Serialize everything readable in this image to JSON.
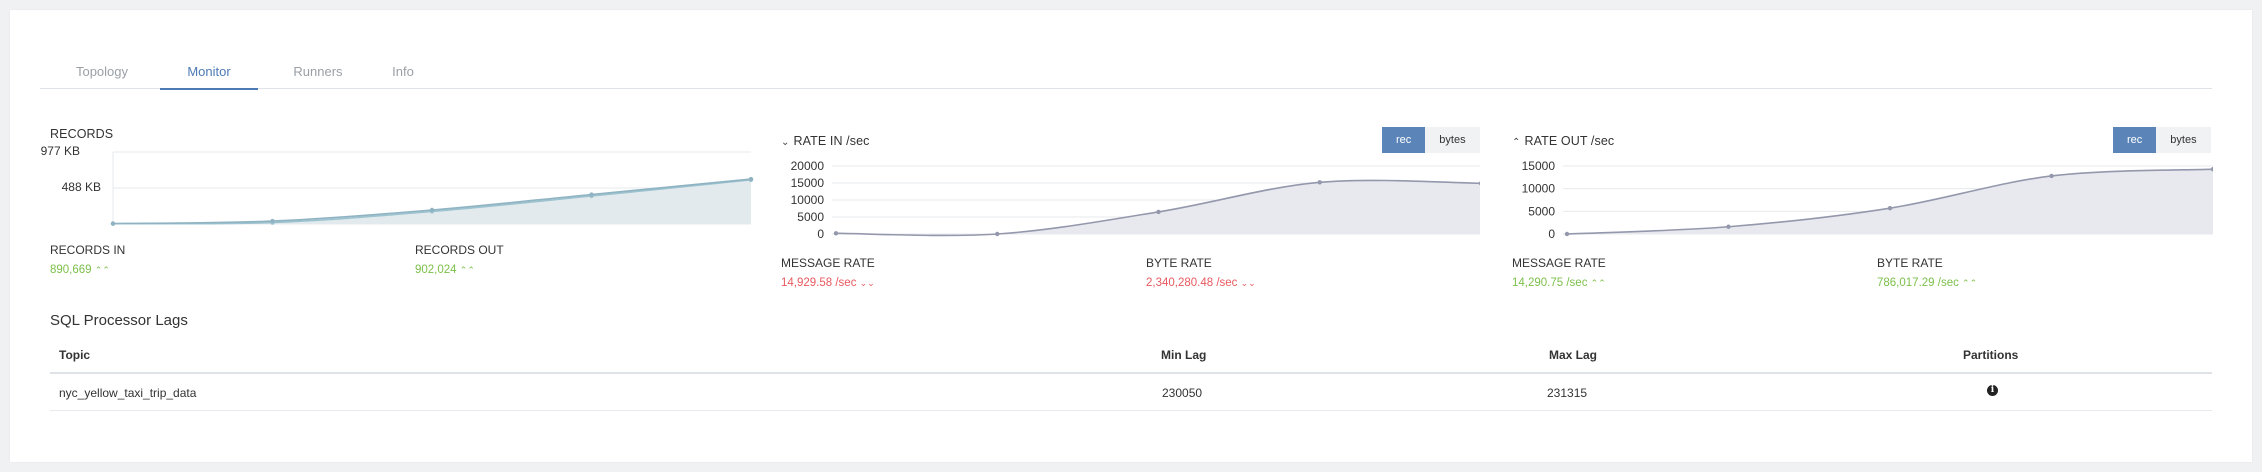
{
  "tabs": [
    {
      "label": "Topology",
      "active": false
    },
    {
      "label": "Monitor",
      "active": true
    },
    {
      "label": "Runners",
      "active": false
    },
    {
      "label": "Info",
      "active": false
    }
  ],
  "records": {
    "title": "RECORDS",
    "y_ticks": [
      "977  KB",
      "488  KB"
    ],
    "in_label": "RECORDS IN",
    "in_value": "890,669",
    "out_label": "RECORDS OUT",
    "out_value": "902,024"
  },
  "rate_in": {
    "title": "RATE IN /sec",
    "btn_rec": "rec",
    "btn_bytes": "bytes",
    "y_ticks": [
      "20000",
      "15000",
      "10000",
      "5000",
      "0"
    ],
    "msg_label": "MESSAGE RATE",
    "msg_value": "14,929.58 /sec",
    "byte_label": "BYTE RATE",
    "byte_value": "2,340,280.48 /sec"
  },
  "rate_out": {
    "title": "RATE OUT /sec",
    "btn_rec": "rec",
    "btn_bytes": "bytes",
    "y_ticks": [
      "15000",
      "10000",
      "5000",
      "0"
    ],
    "msg_label": "MESSAGE RATE",
    "msg_value": "14,290.75 /sec",
    "byte_label": "BYTE RATE",
    "byte_value": "786,017.29 /sec"
  },
  "chart_data": [
    {
      "type": "area",
      "title": "RECORDS",
      "ylabel": "",
      "ylim": [
        0,
        977
      ],
      "y_ticks": [
        "977  KB",
        "488  KB"
      ],
      "series": [
        {
          "name": "RECORDS IN",
          "values": [
            5,
            20,
            170,
            380,
            600
          ]
        },
        {
          "name": "RECORDS OUT",
          "values": [
            5,
            40,
            190,
            400,
            610
          ]
        }
      ]
    },
    {
      "type": "area",
      "title": "RATE IN /sec",
      "ylim": [
        0,
        20000
      ],
      "y_ticks": [
        "20000",
        "15000",
        "10000",
        "5000",
        "0"
      ],
      "series": [
        {
          "values": [
            200,
            0,
            6500,
            15200,
            14900
          ]
        }
      ]
    },
    {
      "type": "area",
      "title": "RATE OUT /sec",
      "ylim": [
        0,
        15000
      ],
      "y_ticks": [
        "15000",
        "10000",
        "5000",
        "0"
      ],
      "series": [
        {
          "values": [
            0,
            1600,
            5700,
            12800,
            14300
          ]
        }
      ]
    }
  ],
  "lags": {
    "title": "SQL Processor Lags",
    "headers": {
      "topic": "Topic",
      "min": "Min Lag",
      "max": "Max Lag",
      "partitions": "Partitions"
    },
    "rows": [
      {
        "topic": "nyc_yellow_taxi_trip_data",
        "min": "230050",
        "max": "231315"
      }
    ]
  },
  "colors": {
    "accent": "#4d7ab4",
    "green": "#7cc04b",
    "red": "#e8595f"
  },
  "icons": {
    "info": "info-circle-icon",
    "up": "double-chevron-up-icon",
    "down": "double-chevron-down-icon"
  }
}
